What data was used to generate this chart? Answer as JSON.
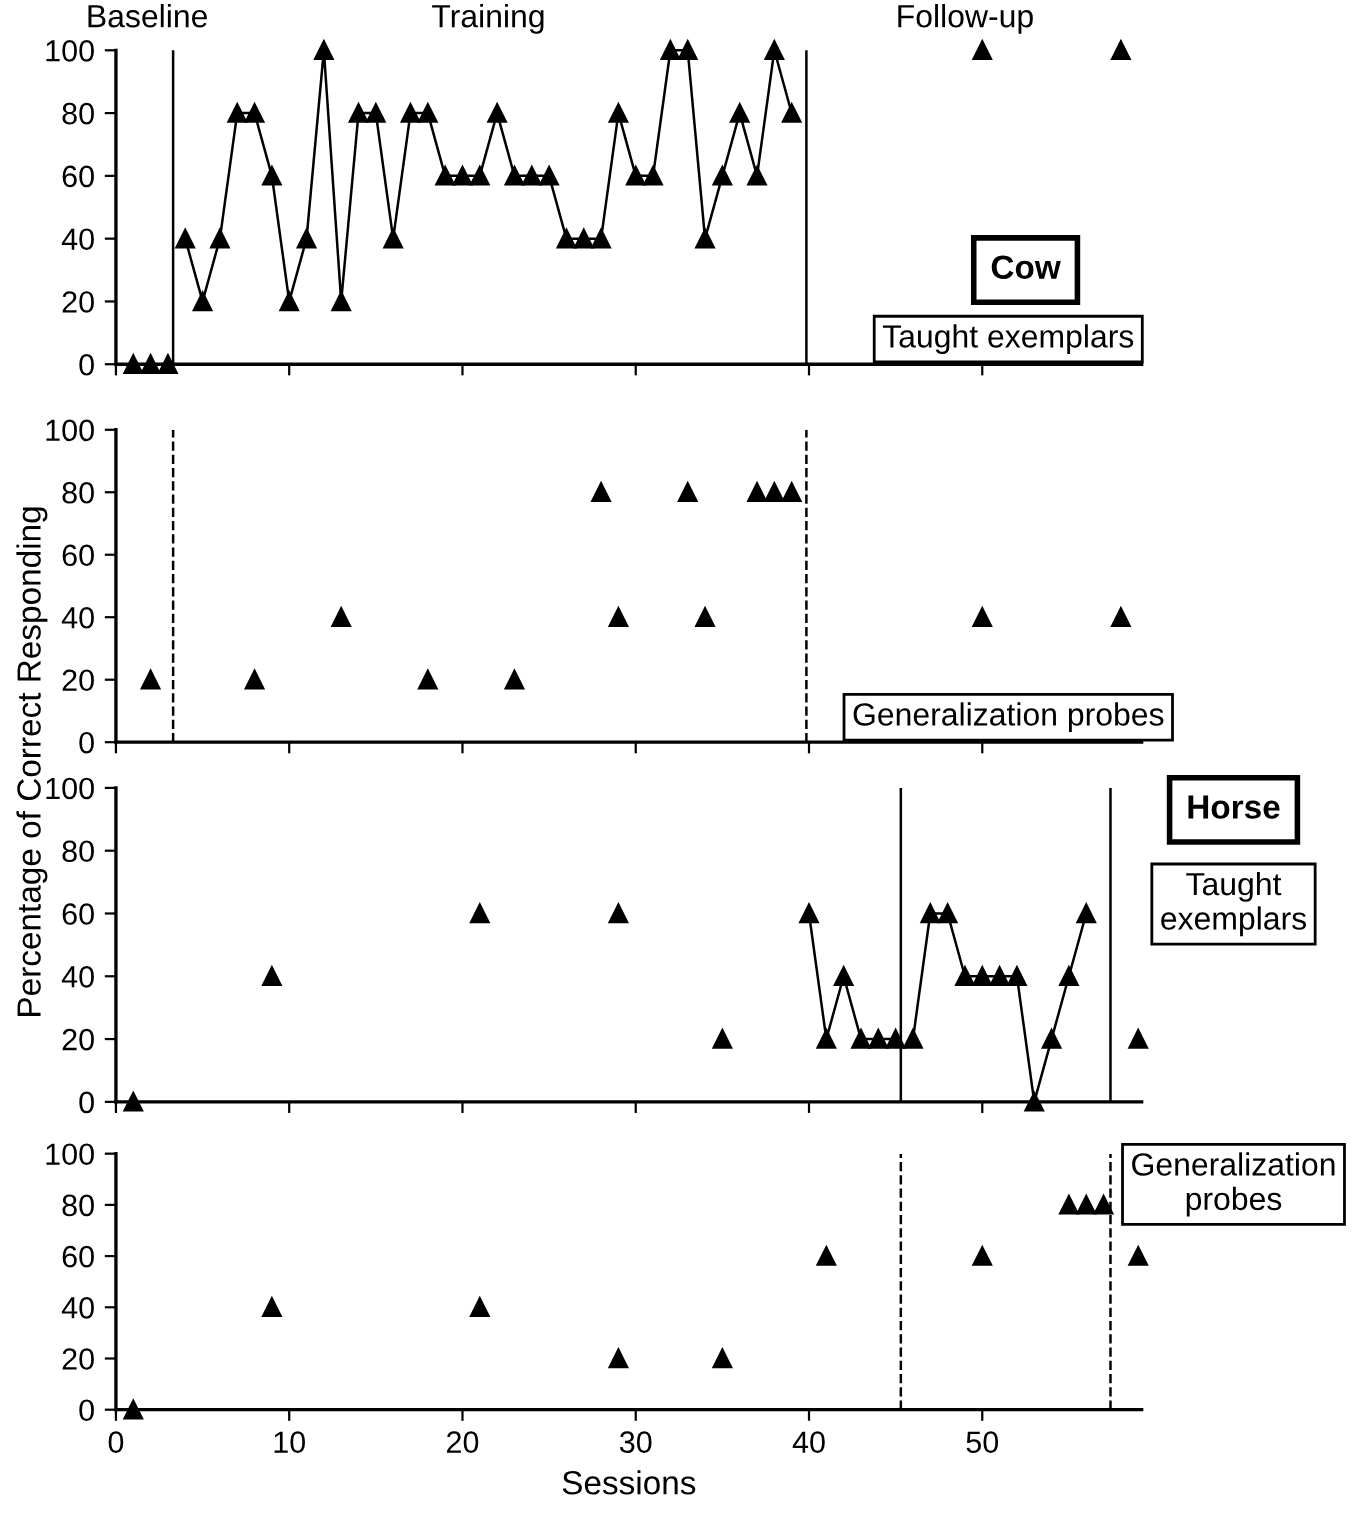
{
  "chart_data": [
    {
      "type": "line",
      "ylabel": "Percentage of Correct Responding",
      "xlim": [
        0,
        59.2
      ],
      "ylim": [
        0,
        100
      ],
      "xticks": [
        0,
        10,
        20,
        30,
        40,
        50
      ],
      "yticks": [
        0,
        20,
        40,
        60,
        80,
        100
      ],
      "tick_labels": "y",
      "marker": "triangle",
      "grid": false,
      "legend": false,
      "annotations": [
        "Baseline",
        "Training",
        "Follow-up",
        "Cow",
        "Taught exemplars"
      ],
      "ref_lines": [
        {
          "axis": "x",
          "value": 3.3,
          "color": "#000000",
          "line_style": "solid"
        },
        {
          "axis": "x",
          "value": 39.85,
          "color": "#000000",
          "line_style": "solid"
        }
      ],
      "series": [
        {
          "type": "scatter",
          "color": "#000000",
          "x": [
            1,
            2,
            3
          ],
          "values": [
            0,
            0,
            0
          ]
        },
        {
          "color": "#000000",
          "x": [
            4,
            5,
            6,
            7,
            8,
            9,
            10,
            11,
            12,
            13,
            14,
            15,
            16,
            17,
            18,
            19,
            20,
            21,
            22,
            23,
            24,
            25,
            26,
            27,
            28,
            29,
            30,
            31,
            32,
            33,
            34,
            35,
            36,
            37,
            38,
            39
          ],
          "values": [
            40,
            20,
            40,
            80,
            80,
            60,
            20,
            40,
            100,
            20,
            80,
            80,
            40,
            80,
            80,
            60,
            60,
            60,
            80,
            60,
            60,
            60,
            40,
            40,
            40,
            80,
            60,
            60,
            100,
            100,
            40,
            60,
            80,
            60,
            100,
            80
          ]
        },
        {
          "type": "scatter",
          "color": "#000000",
          "x": [
            50,
            58
          ],
          "values": [
            100,
            100
          ]
        }
      ]
    },
    {
      "type": "scatter",
      "xlim": [
        0,
        59.2
      ],
      "ylim": [
        0,
        100
      ],
      "xticks": [
        0,
        10,
        20,
        30,
        40,
        50
      ],
      "yticks": [
        0,
        20,
        40,
        60,
        80,
        100
      ],
      "tick_labels": "y",
      "marker": "triangle",
      "grid": false,
      "legend": false,
      "annotations": [
        "Generalization probes"
      ],
      "ref_lines": [
        {
          "axis": "x",
          "value": 3.3,
          "color": "#000000",
          "line_style": "dashed"
        },
        {
          "axis": "x",
          "value": 39.85,
          "color": "#000000",
          "line_style": "dashed"
        }
      ],
      "series": [
        {
          "color": "#000000",
          "x": [
            2,
            8,
            13,
            18,
            23,
            28,
            29,
            33,
            34,
            37,
            38,
            39,
            50,
            58
          ],
          "values": [
            20,
            20,
            40,
            20,
            20,
            80,
            40,
            80,
            40,
            80,
            80,
            80,
            40,
            40
          ]
        }
      ]
    },
    {
      "type": "line",
      "xlim": [
        0,
        59.2
      ],
      "ylim": [
        0,
        100
      ],
      "xticks": [
        0,
        10,
        20,
        30,
        40,
        50
      ],
      "yticks": [
        0,
        20,
        40,
        60,
        80,
        100
      ],
      "tick_labels": "y",
      "marker": "triangle",
      "grid": false,
      "legend": false,
      "annotations": [
        "Horse",
        "Taught\nexemplars"
      ],
      "ref_lines": [
        {
          "axis": "x",
          "value": 45.3,
          "color": "#000000",
          "line_style": "solid"
        },
        {
          "axis": "x",
          "value": 57.4,
          "color": "#000000",
          "line_style": "solid"
        }
      ],
      "series": [
        {
          "type": "scatter",
          "color": "#000000",
          "x": [
            1,
            9,
            21,
            29,
            35
          ],
          "values": [
            0,
            40,
            60,
            60,
            20
          ]
        },
        {
          "color": "#000000",
          "x": [
            40,
            41,
            42,
            43,
            44,
            45
          ],
          "values": [
            60,
            20,
            40,
            20,
            20,
            20
          ]
        },
        {
          "color": "#000000",
          "x": [
            46,
            47,
            48,
            49,
            50,
            51,
            52,
            53,
            54,
            55,
            56
          ],
          "values": [
            20,
            60,
            60,
            40,
            40,
            40,
            40,
            0,
            20,
            40,
            60
          ]
        },
        {
          "type": "scatter",
          "color": "#000000",
          "x": [
            59
          ],
          "values": [
            20
          ]
        }
      ]
    },
    {
      "type": "scatter",
      "xlabel": "Sessions",
      "xlim": [
        0,
        59.2
      ],
      "ylim": [
        0,
        100
      ],
      "xticks": [
        0,
        10,
        20,
        30,
        40,
        50
      ],
      "yticks": [
        0,
        20,
        40,
        60,
        80,
        100
      ],
      "marker": "triangle",
      "grid": false,
      "legend": false,
      "annotations": [
        "Generalization\nprobes"
      ],
      "ref_lines": [
        {
          "axis": "x",
          "value": 45.3,
          "color": "#000000",
          "line_style": "dashed"
        },
        {
          "axis": "x",
          "value": 57.4,
          "color": "#000000",
          "line_style": "dashed"
        }
      ],
      "series": [
        {
          "color": "#000000",
          "x": [
            1,
            9,
            21,
            29,
            35,
            41,
            50,
            55,
            56,
            57,
            59
          ],
          "values": [
            0,
            40,
            40,
            20,
            20,
            60,
            60,
            80,
            80,
            80,
            60
          ]
        }
      ]
    }
  ]
}
